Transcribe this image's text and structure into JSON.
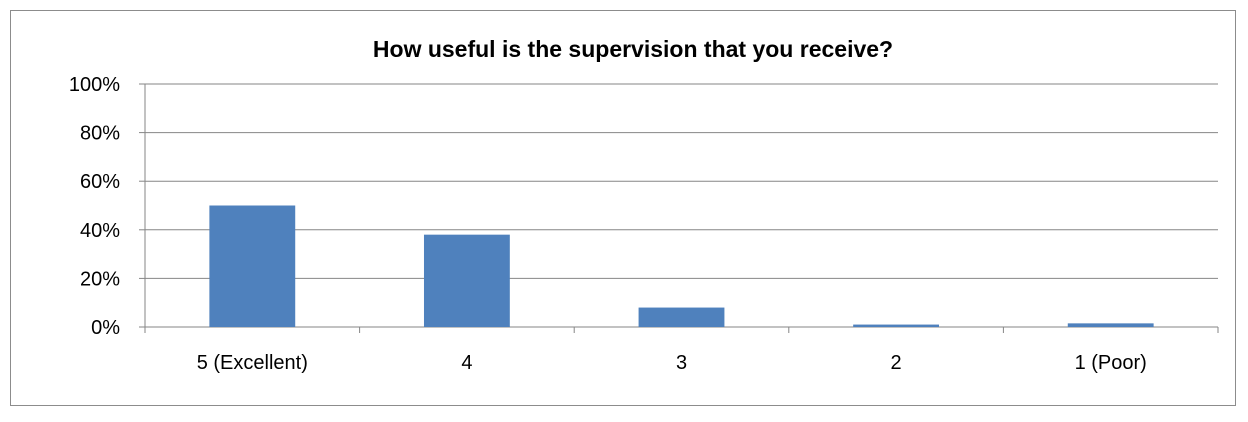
{
  "chart_data": {
    "type": "bar",
    "title": "How useful is the supervision that you receive?",
    "categories": [
      "5 (Excellent)",
      "4",
      "3",
      "2",
      "1 (Poor)"
    ],
    "values": [
      50,
      38,
      8,
      1,
      1.5
    ],
    "ylim": [
      0,
      100
    ],
    "yticks": [
      0,
      20,
      40,
      60,
      80,
      100
    ],
    "ytick_labels": [
      "0%",
      "20%",
      "40%",
      "60%",
      "80%",
      "100%"
    ],
    "xlabel": "",
    "ylabel": "",
    "grid": true,
    "legend": "none",
    "bar_color": "#4f81bd",
    "grid_color": "#868686"
  }
}
